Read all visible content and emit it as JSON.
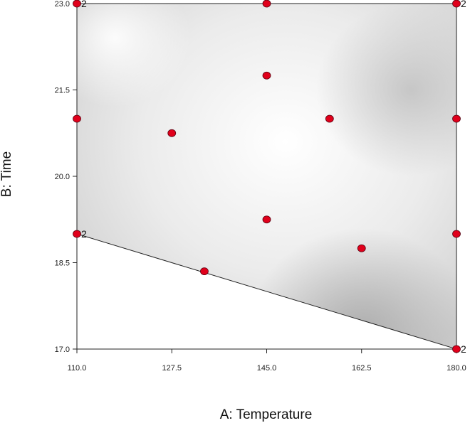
{
  "chart_data": {
    "type": "scatter",
    "xlabel": "A: Temperature",
    "ylabel": "B: Time",
    "xlim": [
      110.0,
      180.0
    ],
    "ylim": [
      17.0,
      23.0
    ],
    "x_ticks": [
      "110.0",
      "127.5",
      "145.0",
      "162.5",
      "180.0"
    ],
    "y_ticks": [
      "17.0",
      "18.5",
      "20.0",
      "21.5",
      "23.0"
    ],
    "region": [
      [
        110.0,
        23.0
      ],
      [
        180.0,
        23.0
      ],
      [
        180.0,
        17.0
      ],
      [
        110.0,
        19.0
      ]
    ],
    "points": [
      {
        "x": 110.0,
        "y": 23.0,
        "label": "2"
      },
      {
        "x": 145.0,
        "y": 23.0,
        "label": ""
      },
      {
        "x": 180.0,
        "y": 23.0,
        "label": "2"
      },
      {
        "x": 145.0,
        "y": 21.75,
        "label": ""
      },
      {
        "x": 110.0,
        "y": 21.0,
        "label": ""
      },
      {
        "x": 156.6,
        "y": 21.0,
        "label": ""
      },
      {
        "x": 180.0,
        "y": 21.0,
        "label": ""
      },
      {
        "x": 127.5,
        "y": 20.75,
        "label": ""
      },
      {
        "x": 145.0,
        "y": 19.25,
        "label": ""
      },
      {
        "x": 110.0,
        "y": 19.0,
        "label": "2"
      },
      {
        "x": 180.0,
        "y": 19.0,
        "label": ""
      },
      {
        "x": 162.5,
        "y": 18.75,
        "label": ""
      },
      {
        "x": 133.5,
        "y": 18.35,
        "label": ""
      },
      {
        "x": 180.0,
        "y": 17.0,
        "label": "2"
      }
    ],
    "point_color": "#e0001b",
    "grid": false,
    "legend": "none"
  }
}
